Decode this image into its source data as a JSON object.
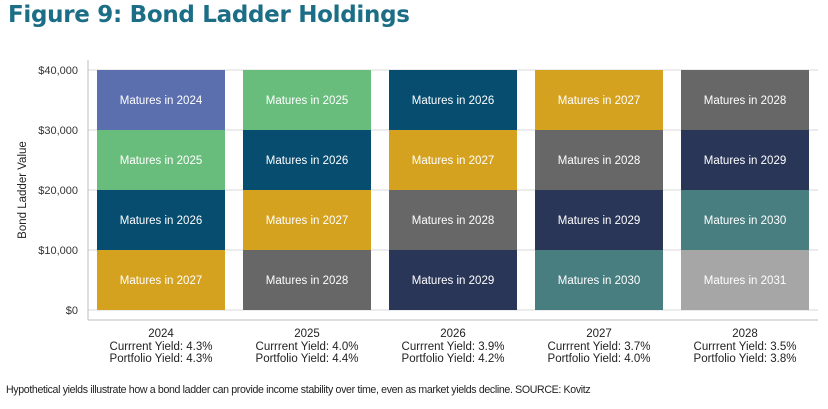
{
  "title": "Figure 9: Bond Ladder Holdings",
  "footnote": "Hypothetical yields illustrate how a bond ladder can provide income stability over time, even as market yields decline. SOURCE: Kovitz",
  "colors": {
    "2024": "#5b6fae",
    "2025": "#69bd7c",
    "2026": "#064d70",
    "2027": "#d4a21f",
    "2028": "#676767",
    "2029": "#293658",
    "2030": "#487e80",
    "2031": "#a6a6a6"
  },
  "chart_data": {
    "type": "bar",
    "stacked": true,
    "ylabel": "Bond Ladder Value",
    "xlabel": "",
    "ylim": [
      0,
      40000
    ],
    "yticks": [
      "$0",
      "$10,000",
      "$20,000",
      "$30,000",
      "$40,000"
    ],
    "categories": [
      "2024",
      "2025",
      "2026",
      "2027",
      "2028"
    ],
    "category_sublabels": [
      [
        "Currrent Yield: 4.3%",
        "Portfolio Yield: 4.3%"
      ],
      [
        "Currrent Yield: 4.0%",
        "Portfolio Yield: 4.4%"
      ],
      [
        "Currrent Yield: 3.9%",
        "Portfolio Yield: 4.2%"
      ],
      [
        "Currrent Yield: 3.7%",
        "Portfolio Yield: 4.0%"
      ],
      [
        "Currrent Yield: 3.5%",
        "Portfolio Yield: 3.8%"
      ]
    ],
    "stacks": [
      [
        {
          "label": "Matures in 2027",
          "maturity": "2027",
          "value": 10000
        },
        {
          "label": "Matures in 2026",
          "maturity": "2026",
          "value": 10000
        },
        {
          "label": "Matures in 2025",
          "maturity": "2025",
          "value": 10000
        },
        {
          "label": "Matures in 2024",
          "maturity": "2024",
          "value": 10000
        }
      ],
      [
        {
          "label": "Matures in 2028",
          "maturity": "2028",
          "value": 10000
        },
        {
          "label": "Matures in 2027",
          "maturity": "2027",
          "value": 10000
        },
        {
          "label": "Matures in 2026",
          "maturity": "2026",
          "value": 10000
        },
        {
          "label": "Matures in 2025",
          "maturity": "2025",
          "value": 10000
        }
      ],
      [
        {
          "label": "Matures in 2029",
          "maturity": "2029",
          "value": 10000
        },
        {
          "label": "Matures in 2028",
          "maturity": "2028",
          "value": 10000
        },
        {
          "label": "Matures in 2027",
          "maturity": "2027",
          "value": 10000
        },
        {
          "label": "Matures in 2026",
          "maturity": "2026",
          "value": 10000
        }
      ],
      [
        {
          "label": "Matures in 2030",
          "maturity": "2030",
          "value": 10000
        },
        {
          "label": "Matures in 2029",
          "maturity": "2029",
          "value": 10000
        },
        {
          "label": "Matures in 2028",
          "maturity": "2028",
          "value": 10000
        },
        {
          "label": "Matures in 2027",
          "maturity": "2027",
          "value": 10000
        }
      ],
      [
        {
          "label": "Matures in 2031",
          "maturity": "2031",
          "value": 10000
        },
        {
          "label": "Matures in 2030",
          "maturity": "2030",
          "value": 10000
        },
        {
          "label": "Matures in 2029",
          "maturity": "2029",
          "value": 10000
        },
        {
          "label": "Matures in 2028",
          "maturity": "2028",
          "value": 10000
        }
      ]
    ],
    "grid": true
  }
}
